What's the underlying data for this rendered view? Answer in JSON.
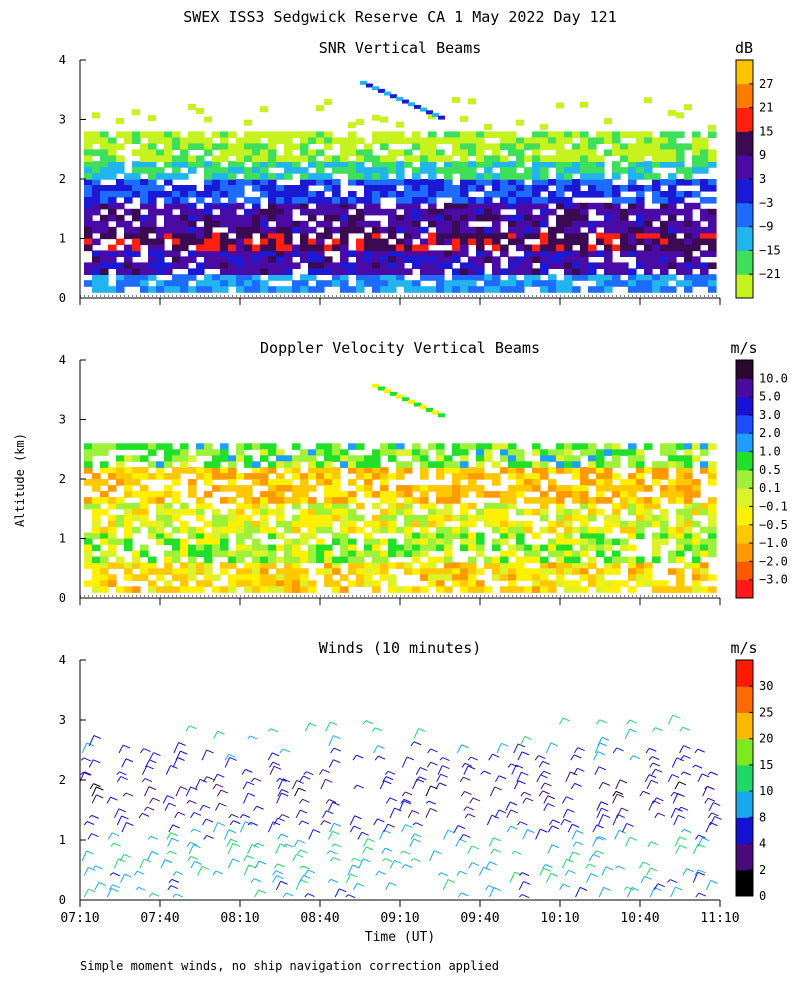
{
  "title": "SWEX ISS3 Sedgwick Reserve CA   1 May 2022 Day 121",
  "ylabel": "Altitude (km)",
  "xlabel": "Time (UT)",
  "footnote": "Simple moment winds, no ship navigation correction applied",
  "colors": {
    "snr": [
      "#c6f21f",
      "#3ee05a",
      "#22b4ef",
      "#1e6cff",
      "#1a1ad6",
      "#4a0aa6",
      "#3c0a52",
      "#ff2010",
      "#ff7a00",
      "#ffc400"
    ],
    "velocity": [
      "#ff1a1a",
      "#ff5a00",
      "#ff9a00",
      "#ffc800",
      "#fff000",
      "#dcf22a",
      "#9ef03a",
      "#22e02a",
      "#1e9eff",
      "#1e4cff",
      "#1a10d6",
      "#4a0a9e",
      "#2a0830"
    ],
    "wind": [
      "#000000",
      "#4a0a7a",
      "#1212d0",
      "#1aa8ee",
      "#20d868",
      "#7ee820",
      "#ffb800",
      "#ff6a00",
      "#ff1a00"
    ]
  },
  "chart_data": [
    {
      "type": "heatmap",
      "name": "snr",
      "title": "SNR Vertical Beams",
      "unit": "dB",
      "x_ticks": [
        "07:10",
        "07:40",
        "08:10",
        "08:40",
        "09:10",
        "09:40",
        "10:10",
        "10:40",
        "11:10"
      ],
      "y_ticks": [
        "0",
        "1",
        "2",
        "3",
        "4"
      ],
      "ylim": [
        0,
        4
      ],
      "colorbar_labels": [
        "27",
        "21",
        "15",
        "9",
        "3",
        "−3",
        "−9",
        "−15",
        "−21"
      ],
      "colorbar_range": [
        -24,
        33
      ],
      "layers": [
        {
          "alt_from": 0.1,
          "alt_to": 0.4,
          "value": -6
        },
        {
          "alt_from": 0.4,
          "alt_to": 0.8,
          "value": 8
        },
        {
          "alt_from": 0.8,
          "alt_to": 1.1,
          "value": 16
        },
        {
          "alt_from": 1.1,
          "alt_to": 1.6,
          "value": 10
        },
        {
          "alt_from": 1.6,
          "alt_to": 2.0,
          "value": 0
        },
        {
          "alt_from": 2.0,
          "alt_to": 2.3,
          "value": -12
        },
        {
          "alt_from": 2.3,
          "alt_to": 2.8,
          "value": -20
        }
      ]
    },
    {
      "type": "heatmap",
      "name": "velocity",
      "title": "Doppler Velocity Vertical Beams",
      "unit": "m/s",
      "x_ticks": [
        "07:10",
        "07:40",
        "08:10",
        "08:40",
        "09:10",
        "09:40",
        "10:10",
        "10:40",
        "11:10"
      ],
      "y_ticks": [
        "0",
        "1",
        "2",
        "3",
        "4"
      ],
      "ylim": [
        0,
        4
      ],
      "colorbar_labels": [
        "10.0",
        "5.0",
        "3.0",
        "2.0",
        "1.0",
        "0.5",
        "0.1",
        "−0.1",
        "−0.5",
        "−1.0",
        "−2.0",
        "−3.0"
      ],
      "layers": [
        {
          "alt_from": 0.1,
          "alt_to": 0.6,
          "value": -0.5
        },
        {
          "alt_from": 0.6,
          "alt_to": 1.1,
          "value": 0.3
        },
        {
          "alt_from": 1.1,
          "alt_to": 1.6,
          "value": -0.1
        },
        {
          "alt_from": 1.6,
          "alt_to": 2.2,
          "value": -0.8
        },
        {
          "alt_from": 2.2,
          "alt_to": 2.6,
          "value": 0.5
        }
      ]
    },
    {
      "type": "scatter",
      "name": "winds",
      "title": "Winds (10 minutes)",
      "unit": "m/s",
      "x_ticks": [
        "07:10",
        "07:40",
        "08:10",
        "08:40",
        "09:10",
        "09:40",
        "10:10",
        "10:40",
        "11:10"
      ],
      "y_ticks": [
        "0",
        "1",
        "2",
        "3",
        "4"
      ],
      "ylim": [
        0,
        4
      ],
      "colorbar_labels": [
        "30",
        "25",
        "20",
        "15",
        "10",
        "8",
        "4",
        "2",
        "0"
      ],
      "colorbar_bounds": [
        0,
        2,
        4,
        8,
        10,
        15,
        20,
        25,
        30,
        35
      ],
      "profile_times": [
        "07:10",
        "07:20",
        "07:30",
        "07:40",
        "07:50",
        "08:00",
        "08:10",
        "08:20",
        "08:30",
        "08:40",
        "08:50",
        "09:00",
        "09:10",
        "09:20",
        "09:30",
        "09:40",
        "09:50",
        "10:00",
        "10:10",
        "10:20",
        "10:30",
        "10:40",
        "10:50",
        "11:00",
        "11:10"
      ],
      "wind_speed_by_altitude": [
        {
          "alt": 0.3,
          "speed": 9
        },
        {
          "alt": 0.8,
          "speed": 11
        },
        {
          "alt": 1.3,
          "speed": 5
        },
        {
          "alt": 1.8,
          "speed": 3
        },
        {
          "alt": 2.3,
          "speed": 6
        },
        {
          "alt": 2.8,
          "speed": 12
        }
      ]
    }
  ]
}
